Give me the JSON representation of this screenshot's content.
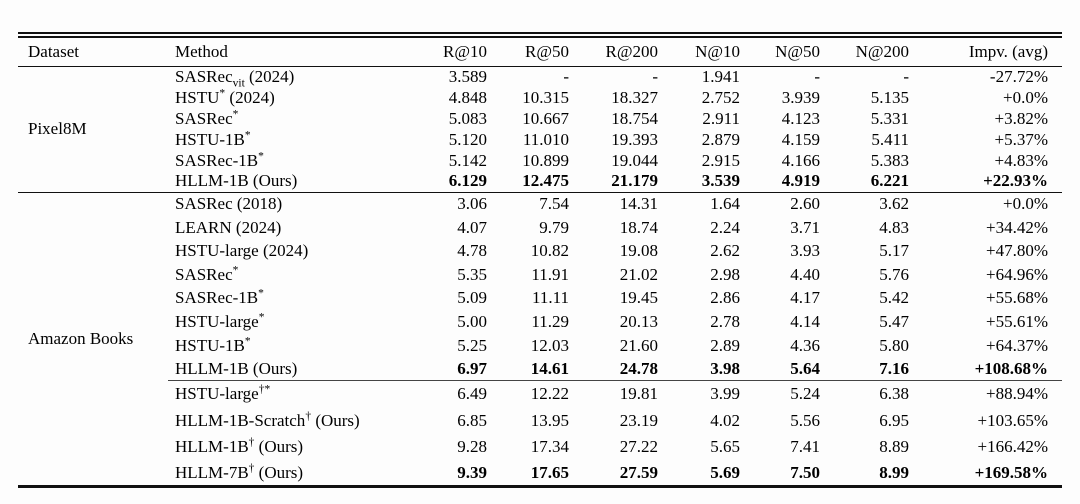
{
  "table": {
    "columns": [
      "Dataset",
      "Method",
      "R@10",
      "R@50",
      "R@200",
      "N@10",
      "N@50",
      "N@200",
      "Impv. (avg)"
    ],
    "sections": [
      {
        "dataset": "Pixel8M",
        "groups": [
          {
            "rows": [
              {
                "method": "SASRec_{vit} (2024)",
                "values": [
                  "3.589",
                  "-",
                  "-",
                  "1.941",
                  "-",
                  "-",
                  "-27.72%"
                ],
                "bold": false
              },
              {
                "method": "HSTU^{*} (2024)",
                "values": [
                  "4.848",
                  "10.315",
                  "18.327",
                  "2.752",
                  "3.939",
                  "5.135",
                  "+0.0%"
                ],
                "bold": false
              },
              {
                "method": "SASRec^{*}",
                "values": [
                  "5.083",
                  "10.667",
                  "18.754",
                  "2.911",
                  "4.123",
                  "5.331",
                  "+3.82%"
                ],
                "bold": false
              },
              {
                "method": "HSTU-1B^{*}",
                "values": [
                  "5.120",
                  "11.010",
                  "19.393",
                  "2.879",
                  "4.159",
                  "5.411",
                  "+5.37%"
                ],
                "bold": false
              },
              {
                "method": "SASRec-1B^{*}",
                "values": [
                  "5.142",
                  "10.899",
                  "19.044",
                  "2.915",
                  "4.166",
                  "5.383",
                  "+4.83%"
                ],
                "bold": false
              },
              {
                "method": "HLLM-1B (Ours)",
                "values": [
                  "6.129",
                  "12.475",
                  "21.179",
                  "3.539",
                  "4.919",
                  "6.221",
                  "+22.93%"
                ],
                "bold": true
              }
            ]
          }
        ]
      },
      {
        "dataset": "Amazon Books",
        "groups": [
          {
            "rows": [
              {
                "method": "SASRec (2018)",
                "values": [
                  "3.06",
                  "7.54",
                  "14.31",
                  "1.64",
                  "2.60",
                  "3.62",
                  "+0.0%"
                ],
                "bold": false
              },
              {
                "method": "LEARN (2024)",
                "values": [
                  "4.07",
                  "9.79",
                  "18.74",
                  "2.24",
                  "3.71",
                  "4.83",
                  "+34.42%"
                ],
                "bold": false
              },
              {
                "method": "HSTU-large (2024)",
                "values": [
                  "4.78",
                  "10.82",
                  "19.08",
                  "2.62",
                  "3.93",
                  "5.17",
                  "+47.80%"
                ],
                "bold": false
              },
              {
                "method": "SASRec^{*}",
                "values": [
                  "5.35",
                  "11.91",
                  "21.02",
                  "2.98",
                  "4.40",
                  "5.76",
                  "+64.96%"
                ],
                "bold": false
              },
              {
                "method": "SASRec-1B^{*}",
                "values": [
                  "5.09",
                  "11.11",
                  "19.45",
                  "2.86",
                  "4.17",
                  "5.42",
                  "+55.68%"
                ],
                "bold": false
              },
              {
                "method": "HSTU-large^{*}",
                "values": [
                  "5.00",
                  "11.29",
                  "20.13",
                  "2.78",
                  "4.14",
                  "5.47",
                  "+55.61%"
                ],
                "bold": false
              },
              {
                "method": "HSTU-1B^{*}",
                "values": [
                  "5.25",
                  "12.03",
                  "21.60",
                  "2.89",
                  "4.36",
                  "5.80",
                  "+64.37%"
                ],
                "bold": false
              },
              {
                "method": "HLLM-1B (Ours)",
                "values": [
                  "6.97",
                  "14.61",
                  "24.78",
                  "3.98",
                  "5.64",
                  "7.16",
                  "+108.68%"
                ],
                "bold": true
              }
            ]
          },
          {
            "rows": [
              {
                "method": "HSTU-large^{†*}",
                "values": [
                  "6.49",
                  "12.22",
                  "19.81",
                  "3.99",
                  "5.24",
                  "6.38",
                  "+88.94%"
                ],
                "bold": false
              },
              {
                "method": "HLLM-1B-Scratch^{†} (Ours)",
                "values": [
                  "6.85",
                  "13.95",
                  "23.19",
                  "4.02",
                  "5.56",
                  "6.95",
                  "+103.65%"
                ],
                "bold": false
              },
              {
                "method": "HLLM-1B^{†} (Ours)",
                "values": [
                  "9.28",
                  "17.34",
                  "27.22",
                  "5.65",
                  "7.41",
                  "8.89",
                  "+166.42%"
                ],
                "bold": false
              },
              {
                "method": "HLLM-7B^{†} (Ours)",
                "values": [
                  "9.39",
                  "17.65",
                  "27.59",
                  "5.69",
                  "7.50",
                  "8.99",
                  "+169.58%"
                ],
                "bold": true
              }
            ]
          }
        ]
      }
    ]
  }
}
